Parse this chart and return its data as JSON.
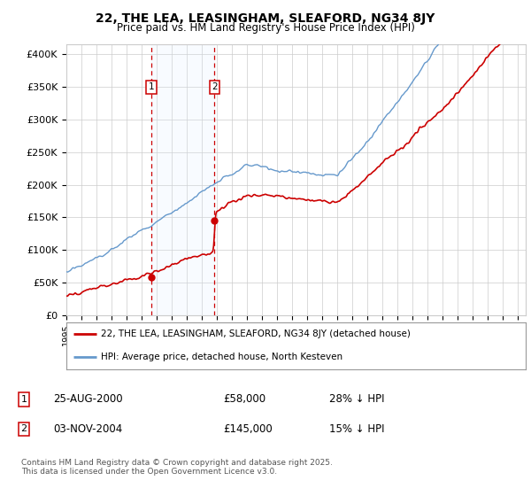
{
  "title": "22, THE LEA, LEASINGHAM, SLEAFORD, NG34 8JY",
  "subtitle": "Price paid vs. HM Land Registry's House Price Index (HPI)",
  "ylabel_ticks": [
    "£0",
    "£50K",
    "£100K",
    "£150K",
    "£200K",
    "£250K",
    "£300K",
    "£350K",
    "£400K"
  ],
  "ytick_values": [
    0,
    50000,
    100000,
    150000,
    200000,
    250000,
    300000,
    350000,
    400000
  ],
  "ylim": [
    0,
    415000
  ],
  "xlim_start": 1995.0,
  "xlim_end": 2025.5,
  "purchase1_year": 2000.65,
  "purchase1_price": 58000,
  "purchase2_year": 2004.84,
  "purchase2_price": 145000,
  "purchase1_label": "1",
  "purchase2_label": "2",
  "shade_color": "#ddeeff",
  "dashed_color": "#cc0000",
  "legend_line1": "22, THE LEA, LEASINGHAM, SLEAFORD, NG34 8JY (detached house)",
  "legend_line2": "HPI: Average price, detached house, North Kesteven",
  "table_row1": [
    "1",
    "25-AUG-2000",
    "£58,000",
    "28% ↓ HPI"
  ],
  "table_row2": [
    "2",
    "03-NOV-2004",
    "£145,000",
    "15% ↓ HPI"
  ],
  "footnote": "Contains HM Land Registry data © Crown copyright and database right 2025.\nThis data is licensed under the Open Government Licence v3.0.",
  "hpi_color": "#6699cc",
  "price_color": "#cc0000",
  "background_color": "#ffffff",
  "grid_color": "#cccccc"
}
